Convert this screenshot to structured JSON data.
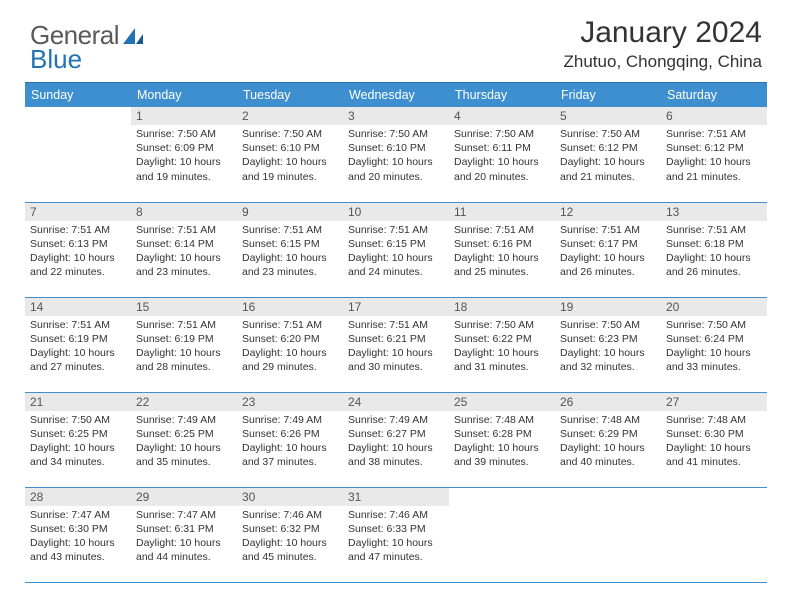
{
  "logo": {
    "text_a": "General",
    "text_b": "Blue"
  },
  "title": "January 2024",
  "location": "Zhutuo, Chongqing, China",
  "colors": {
    "header_bg": "#3d8fcf",
    "header_border": "#2d6fa5",
    "daynum_bg": "#e9e9e9",
    "rule": "#3d8fcf",
    "text": "#333333",
    "logo_gray": "#5a5a5a",
    "logo_blue": "#2273b5"
  },
  "dayHeaders": [
    "Sunday",
    "Monday",
    "Tuesday",
    "Wednesday",
    "Thursday",
    "Friday",
    "Saturday"
  ],
  "weeks": [
    [
      null,
      {
        "n": "1",
        "sr": "7:50 AM",
        "ss": "6:09 PM",
        "dl": "10 hours and 19 minutes."
      },
      {
        "n": "2",
        "sr": "7:50 AM",
        "ss": "6:10 PM",
        "dl": "10 hours and 19 minutes."
      },
      {
        "n": "3",
        "sr": "7:50 AM",
        "ss": "6:10 PM",
        "dl": "10 hours and 20 minutes."
      },
      {
        "n": "4",
        "sr": "7:50 AM",
        "ss": "6:11 PM",
        "dl": "10 hours and 20 minutes."
      },
      {
        "n": "5",
        "sr": "7:50 AM",
        "ss": "6:12 PM",
        "dl": "10 hours and 21 minutes."
      },
      {
        "n": "6",
        "sr": "7:51 AM",
        "ss": "6:12 PM",
        "dl": "10 hours and 21 minutes."
      }
    ],
    [
      {
        "n": "7",
        "sr": "7:51 AM",
        "ss": "6:13 PM",
        "dl": "10 hours and 22 minutes."
      },
      {
        "n": "8",
        "sr": "7:51 AM",
        "ss": "6:14 PM",
        "dl": "10 hours and 23 minutes."
      },
      {
        "n": "9",
        "sr": "7:51 AM",
        "ss": "6:15 PM",
        "dl": "10 hours and 23 minutes."
      },
      {
        "n": "10",
        "sr": "7:51 AM",
        "ss": "6:15 PM",
        "dl": "10 hours and 24 minutes."
      },
      {
        "n": "11",
        "sr": "7:51 AM",
        "ss": "6:16 PM",
        "dl": "10 hours and 25 minutes."
      },
      {
        "n": "12",
        "sr": "7:51 AM",
        "ss": "6:17 PM",
        "dl": "10 hours and 26 minutes."
      },
      {
        "n": "13",
        "sr": "7:51 AM",
        "ss": "6:18 PM",
        "dl": "10 hours and 26 minutes."
      }
    ],
    [
      {
        "n": "14",
        "sr": "7:51 AM",
        "ss": "6:19 PM",
        "dl": "10 hours and 27 minutes."
      },
      {
        "n": "15",
        "sr": "7:51 AM",
        "ss": "6:19 PM",
        "dl": "10 hours and 28 minutes."
      },
      {
        "n": "16",
        "sr": "7:51 AM",
        "ss": "6:20 PM",
        "dl": "10 hours and 29 minutes."
      },
      {
        "n": "17",
        "sr": "7:51 AM",
        "ss": "6:21 PM",
        "dl": "10 hours and 30 minutes."
      },
      {
        "n": "18",
        "sr": "7:50 AM",
        "ss": "6:22 PM",
        "dl": "10 hours and 31 minutes."
      },
      {
        "n": "19",
        "sr": "7:50 AM",
        "ss": "6:23 PM",
        "dl": "10 hours and 32 minutes."
      },
      {
        "n": "20",
        "sr": "7:50 AM",
        "ss": "6:24 PM",
        "dl": "10 hours and 33 minutes."
      }
    ],
    [
      {
        "n": "21",
        "sr": "7:50 AM",
        "ss": "6:25 PM",
        "dl": "10 hours and 34 minutes."
      },
      {
        "n": "22",
        "sr": "7:49 AM",
        "ss": "6:25 PM",
        "dl": "10 hours and 35 minutes."
      },
      {
        "n": "23",
        "sr": "7:49 AM",
        "ss": "6:26 PM",
        "dl": "10 hours and 37 minutes."
      },
      {
        "n": "24",
        "sr": "7:49 AM",
        "ss": "6:27 PM",
        "dl": "10 hours and 38 minutes."
      },
      {
        "n": "25",
        "sr": "7:48 AM",
        "ss": "6:28 PM",
        "dl": "10 hours and 39 minutes."
      },
      {
        "n": "26",
        "sr": "7:48 AM",
        "ss": "6:29 PM",
        "dl": "10 hours and 40 minutes."
      },
      {
        "n": "27",
        "sr": "7:48 AM",
        "ss": "6:30 PM",
        "dl": "10 hours and 41 minutes."
      }
    ],
    [
      {
        "n": "28",
        "sr": "7:47 AM",
        "ss": "6:30 PM",
        "dl": "10 hours and 43 minutes."
      },
      {
        "n": "29",
        "sr": "7:47 AM",
        "ss": "6:31 PM",
        "dl": "10 hours and 44 minutes."
      },
      {
        "n": "30",
        "sr": "7:46 AM",
        "ss": "6:32 PM",
        "dl": "10 hours and 45 minutes."
      },
      {
        "n": "31",
        "sr": "7:46 AM",
        "ss": "6:33 PM",
        "dl": "10 hours and 47 minutes."
      },
      null,
      null,
      null
    ]
  ],
  "labels": {
    "sunrise": "Sunrise:",
    "sunset": "Sunset:",
    "daylight": "Daylight:"
  }
}
